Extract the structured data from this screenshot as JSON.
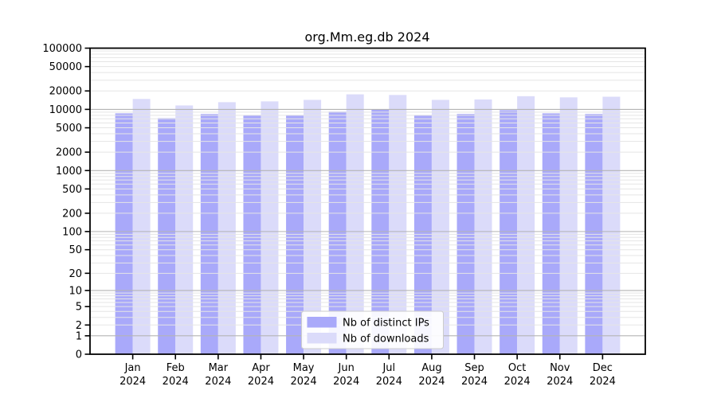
{
  "title": "org.Mm.eg.db 2024",
  "chart_data": {
    "type": "bar",
    "title": "org.Mm.eg.db 2024",
    "x_months": [
      "Jan",
      "Feb",
      "Mar",
      "Apr",
      "May",
      "Jun",
      "Jul",
      "Aug",
      "Sep",
      "Oct",
      "Nov",
      "Dec"
    ],
    "x_year": "2024",
    "series": [
      {
        "name": "Nb of distinct IPs",
        "color": "#a9a9fa",
        "values": [
          8600,
          7200,
          8400,
          8100,
          8100,
          9200,
          10100,
          8100,
          8400,
          9700,
          8600,
          8400
        ]
      },
      {
        "name": "Nb of downloads",
        "color": "#dbdbfa",
        "values": [
          14800,
          11600,
          13100,
          13500,
          14300,
          17600,
          17200,
          14300,
          14500,
          16400,
          15700,
          16100
        ]
      }
    ],
    "y_scale": "log10(1+v)",
    "ylim": [
      0,
      100000
    ],
    "y_ticks": [
      0,
      1,
      2,
      5,
      10,
      20,
      50,
      100,
      200,
      500,
      1000,
      2000,
      5000,
      10000,
      20000,
      50000,
      100000
    ],
    "grid": true,
    "legend_position": "lower center"
  },
  "colors": {
    "major_gridline": "#b4b4b4",
    "minor_gridline": "#e5e5e5",
    "axis": "#000000",
    "legend_border": "#cccccc",
    "legend_bg": "#ffffff",
    "background": "#ffffff"
  }
}
